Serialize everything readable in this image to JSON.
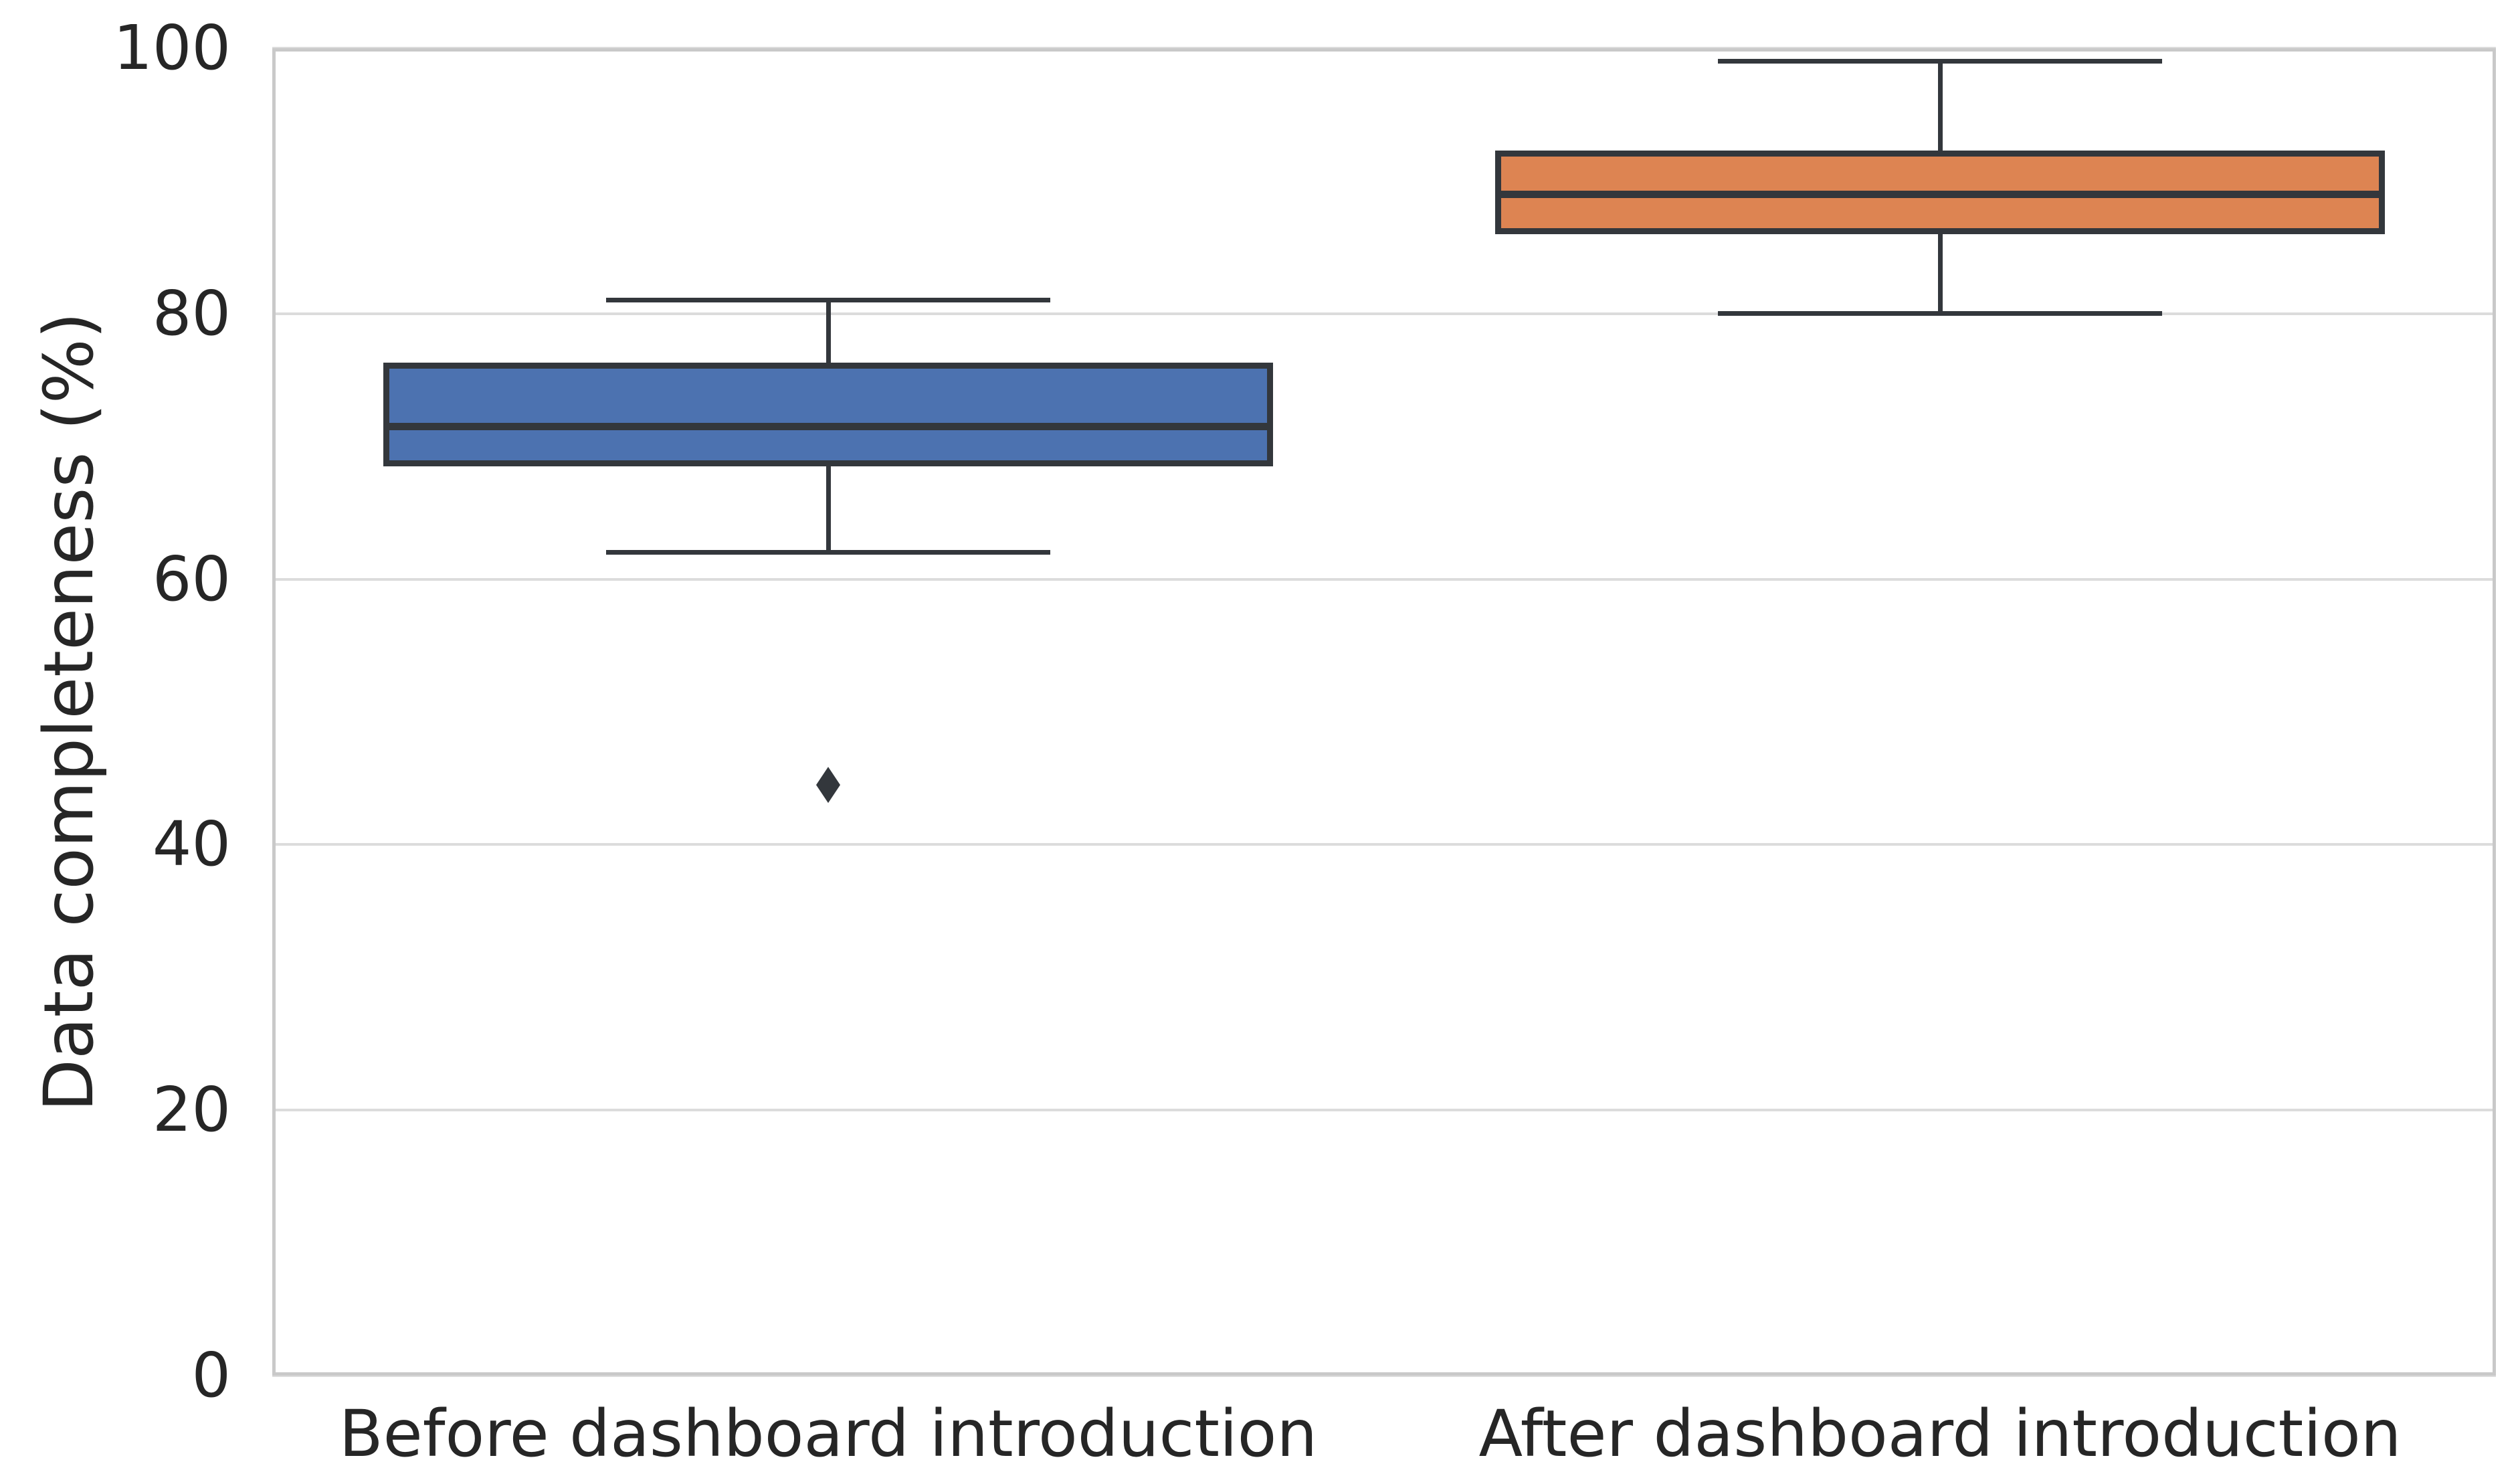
{
  "figure": {
    "background": "#ffffff",
    "text_color": "#262626",
    "grid_color": "#dcdcdc",
    "spine_color": "#c9c9c9",
    "box_line_color": "#33373c"
  },
  "chart_data": {
    "type": "box",
    "title": "",
    "xlabel": "",
    "ylabel": "Data completeness (%)",
    "ylim": [
      0,
      100
    ],
    "yticks": [
      0,
      20,
      40,
      60,
      80,
      100
    ],
    "grid": "horizontal gridlines at y ticks",
    "legend": "none",
    "categories": [
      "Before dashboard introduction",
      "After dashboard introduction"
    ],
    "series": [
      {
        "name": "Before dashboard introduction",
        "box_color": "#4C72B0",
        "whisker_low": 62,
        "q1": 68.5,
        "median": 71.5,
        "q3": 76.3,
        "whisker_high": 81,
        "outliers": [
          44.5
        ]
      },
      {
        "name": "After dashboard introduction",
        "box_color": "#DD8452",
        "whisker_low": 80,
        "q1": 86,
        "median": 89,
        "q3": 92.3,
        "whisker_high": 99,
        "outliers": []
      }
    ]
  }
}
